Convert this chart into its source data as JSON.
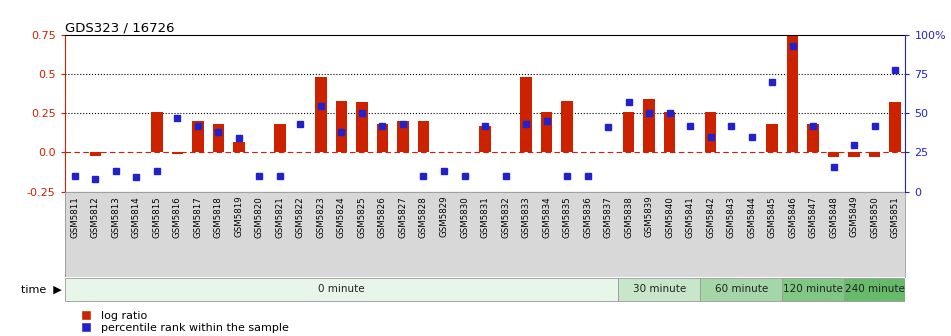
{
  "title": "GDS323 / 16726",
  "samples": [
    "GSM5811",
    "GSM5812",
    "GSM5813",
    "GSM5814",
    "GSM5815",
    "GSM5816",
    "GSM5817",
    "GSM5818",
    "GSM5819",
    "GSM5820",
    "GSM5821",
    "GSM5822",
    "GSM5823",
    "GSM5824",
    "GSM5825",
    "GSM5826",
    "GSM5827",
    "GSM5828",
    "GSM5829",
    "GSM5830",
    "GSM5831",
    "GSM5832",
    "GSM5833",
    "GSM5834",
    "GSM5835",
    "GSM5836",
    "GSM5837",
    "GSM5838",
    "GSM5839",
    "GSM5840",
    "GSM5841",
    "GSM5842",
    "GSM5843",
    "GSM5844",
    "GSM5845",
    "GSM5846",
    "GSM5847",
    "GSM5848",
    "GSM5849",
    "GSM5850",
    "GSM5851"
  ],
  "log_ratio": [
    0.0,
    -0.02,
    0.0,
    0.0,
    0.26,
    -0.01,
    0.2,
    0.18,
    0.07,
    0.0,
    0.18,
    0.0,
    0.48,
    0.33,
    0.32,
    0.18,
    0.2,
    0.2,
    0.0,
    0.0,
    0.17,
    0.0,
    0.48,
    0.26,
    0.33,
    0.0,
    0.0,
    0.26,
    0.34,
    0.26,
    0.0,
    0.26,
    0.0,
    0.0,
    0.18,
    0.78,
    0.18,
    -0.03,
    -0.03,
    -0.03,
    0.32
  ],
  "percentile": [
    0.1,
    0.08,
    0.13,
    0.09,
    0.13,
    0.47,
    0.42,
    0.38,
    0.34,
    0.1,
    0.1,
    0.43,
    0.55,
    0.38,
    0.5,
    0.42,
    0.43,
    0.1,
    0.13,
    0.1,
    0.42,
    0.1,
    0.43,
    0.45,
    0.1,
    0.1,
    0.41,
    0.57,
    0.5,
    0.5,
    0.42,
    0.35,
    0.42,
    0.35,
    0.7,
    0.93,
    0.42,
    0.16,
    0.3,
    0.42,
    0.78
  ],
  "time_groups": [
    {
      "label": "0 minute",
      "start": 0,
      "end": 27,
      "color": "#e8f5e9"
    },
    {
      "label": "30 minute",
      "start": 27,
      "end": 31,
      "color": "#c8e6c9"
    },
    {
      "label": "60 minute",
      "start": 31,
      "end": 35,
      "color": "#a5d6a7"
    },
    {
      "label": "120 minute",
      "start": 35,
      "end": 38,
      "color": "#81c784"
    },
    {
      "label": "240 minute",
      "start": 38,
      "end": 41,
      "color": "#66bb6a"
    }
  ],
  "bar_color": "#cc2200",
  "dot_color": "#2222cc",
  "ylim_left": [
    -0.25,
    0.75
  ],
  "ylim_right": [
    0,
    100
  ],
  "yticks_left": [
    -0.25,
    0.0,
    0.25,
    0.5,
    0.75
  ],
  "yticks_right": [
    0,
    25,
    50,
    75,
    100
  ],
  "hlines_dotted": [
    0.25,
    0.5
  ],
  "legend_items": [
    "log ratio",
    "percentile rank within the sample"
  ],
  "label_bg_color": "#d8d8d8",
  "time_label": "time",
  "time_arrow": true
}
